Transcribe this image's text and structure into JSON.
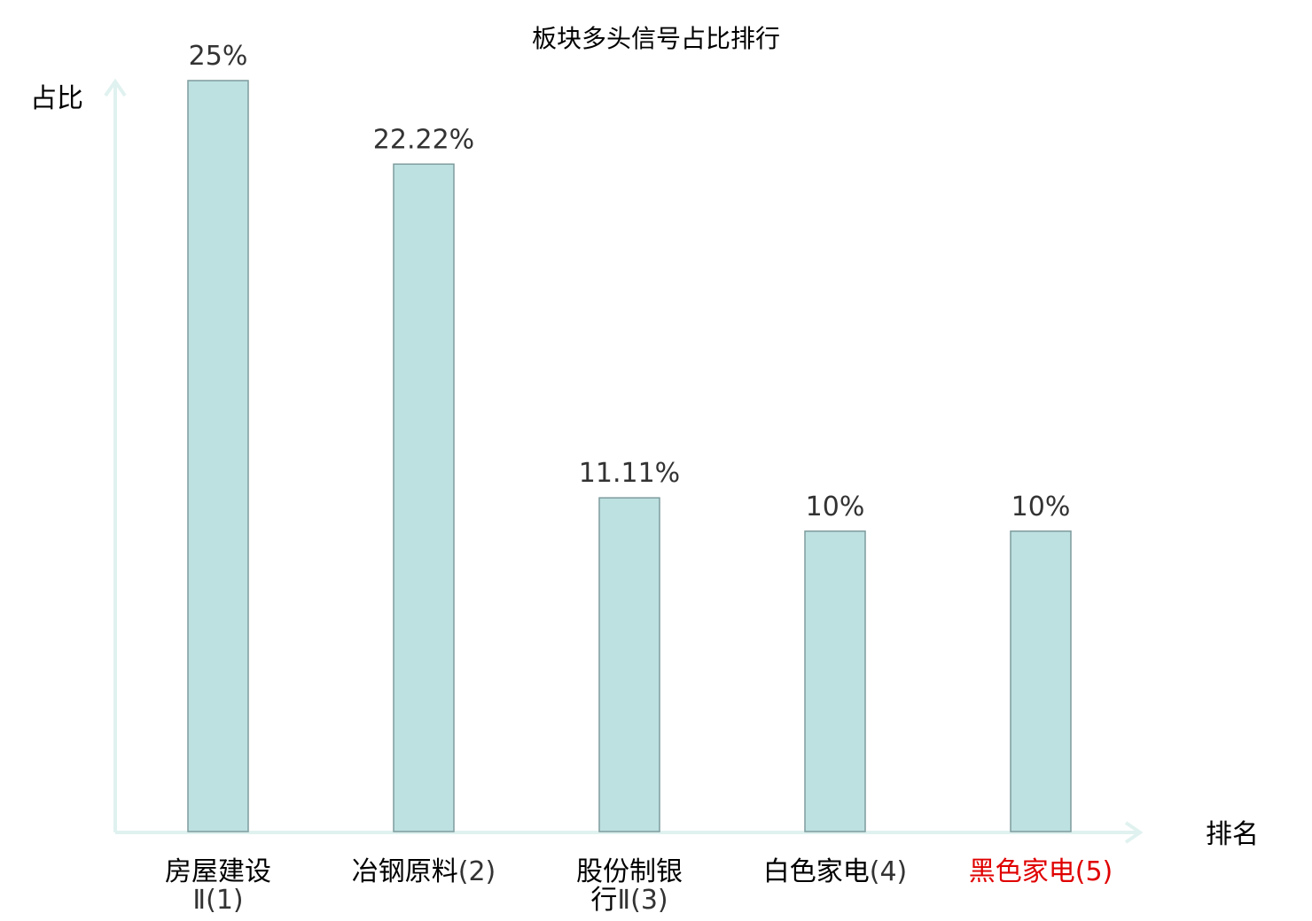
{
  "chart_data": {
    "type": "bar",
    "title": "板块多头信号占比排行",
    "ylabel": "占比",
    "xlabel": "排名",
    "ylim": [
      0,
      25
    ],
    "grid": false,
    "categories": [
      {
        "lines": [
          [
            "房屋建设",
            ""
          ],
          [
            "",
            "Ⅱ(1)"
          ]
        ],
        "highlight": false
      },
      {
        "lines": [
          [
            "冶钢原料",
            "(2)"
          ]
        ],
        "highlight": false
      },
      {
        "lines": [
          [
            "股份制银",
            ""
          ],
          [
            "行",
            "Ⅱ(3)"
          ]
        ],
        "highlight": false
      },
      {
        "lines": [
          [
            "白色家电",
            "(4)"
          ]
        ],
        "highlight": false
      },
      {
        "lines": [
          [
            "黑色家电",
            "(5)"
          ]
        ],
        "highlight": true
      }
    ],
    "values": [
      25,
      22.22,
      11.11,
      10,
      10
    ],
    "value_labels": [
      "25%",
      "22.22%",
      "11.11%",
      "10%",
      "10%"
    ],
    "colors": {
      "bar_fill": "#bde0e1",
      "bar_stroke": "#7f9c9d",
      "axis": "#e0f2ef",
      "highlight_text": "#e00000"
    }
  }
}
